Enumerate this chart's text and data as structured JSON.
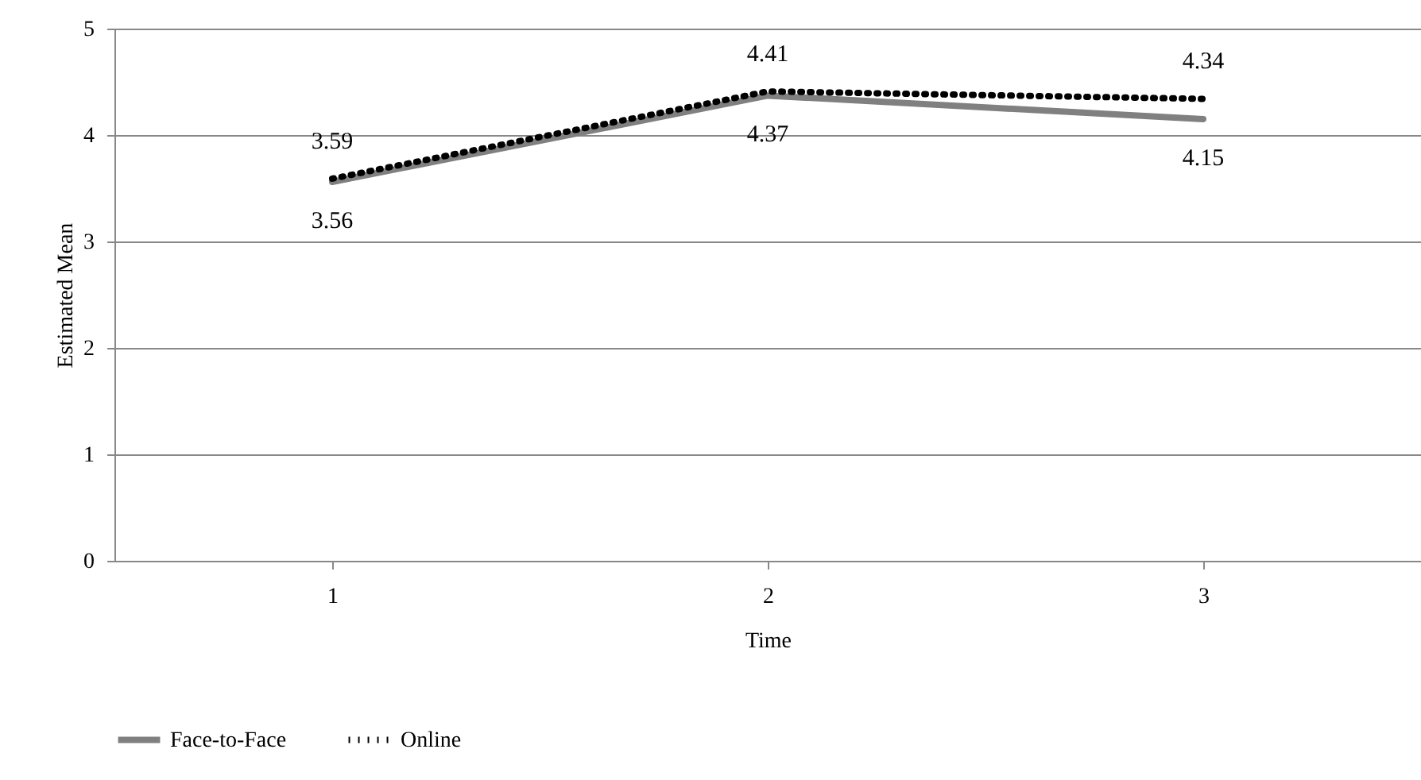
{
  "chart_data": {
    "type": "line",
    "xlabel": "Time",
    "ylabel": "Estimated Mean",
    "categories": [
      "1",
      "2",
      "3"
    ],
    "series": [
      {
        "name": "Face-to-Face",
        "color": "#808080",
        "line_style": "solid",
        "values": [
          3.56,
          4.37,
          4.15
        ]
      },
      {
        "name": "Online",
        "color": "#000000",
        "line_style": "dotted",
        "values": [
          3.59,
          4.41,
          4.34
        ]
      }
    ],
    "ylim": [
      0,
      5
    ],
    "yticks": [
      0,
      1,
      2,
      3,
      4,
      5
    ],
    "grid": "y",
    "legend": "bottom",
    "data_labels": true
  }
}
